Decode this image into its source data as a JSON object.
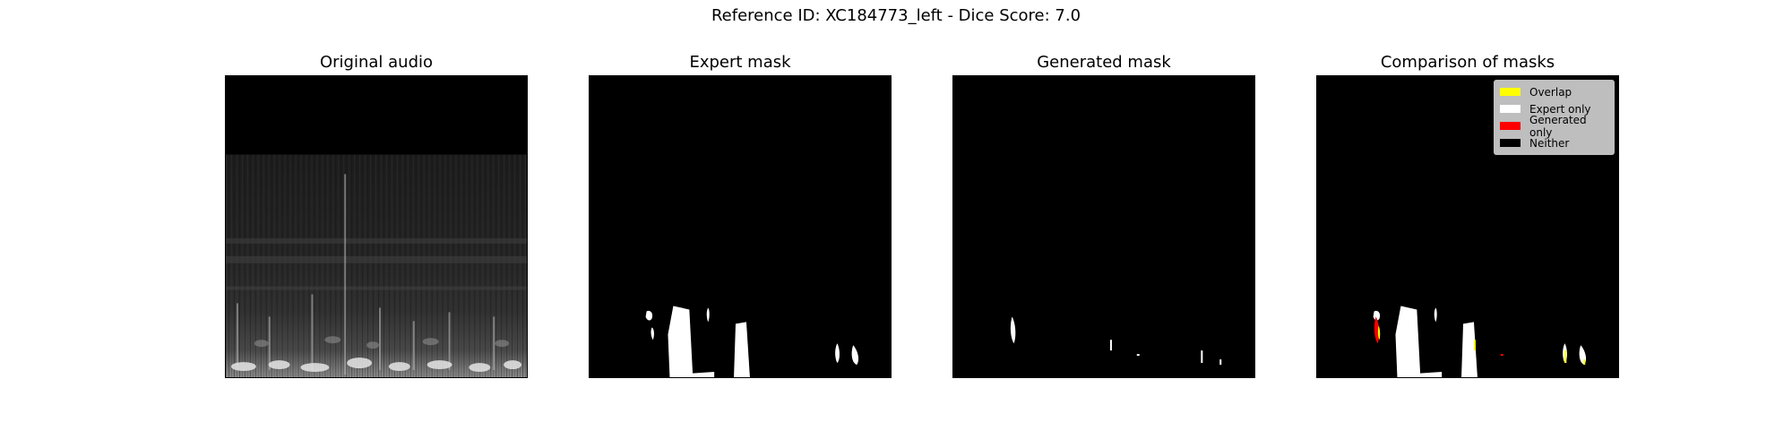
{
  "figure": {
    "suptitle": "Reference ID: XC184773_left - Dice Score: 7.0"
  },
  "panels": [
    {
      "title": "Original audio"
    },
    {
      "title": "Expert mask"
    },
    {
      "title": "Generated mask"
    },
    {
      "title": "Comparison of masks"
    }
  ],
  "legend": {
    "items": [
      {
        "label": "Overlap",
        "color": "#ffff00"
      },
      {
        "label": "Expert only",
        "color": "#ffffff"
      },
      {
        "label": "Generated only",
        "color": "#ff0000"
      },
      {
        "label": "Neither",
        "color": "#000000"
      }
    ]
  },
  "colors": {
    "background": "#000000",
    "expert": "#ffffff",
    "overlap": "#ffff00",
    "generated_only": "#ff0000"
  }
}
